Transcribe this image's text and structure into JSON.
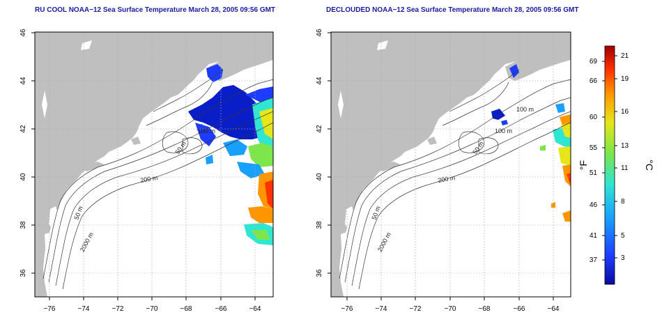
{
  "panels": [
    {
      "title": "RU COOL NOAA−12 Sea Surface Temperature March 28, 2005 09:56 GMT",
      "contour_labels": [
        "100 m",
        "50 m",
        "200 m",
        "50 m",
        "2000 m"
      ]
    },
    {
      "title": "DECLOUDED NOAA−12 Sea Surface Temperature March 28, 2005 09:56 GMT",
      "contour_labels": [
        "100 m",
        "100 m",
        "50 m",
        "200 m",
        "50 m",
        "2000 m"
      ]
    }
  ],
  "axes": {
    "x_ticks": [
      "−76",
      "−74",
      "−72",
      "−70",
      "−68",
      "−66",
      "−64"
    ],
    "y_ticks": [
      "46",
      "44",
      "42",
      "40",
      "38",
      "36"
    ]
  },
  "colorbar": {
    "fahrenheit_label": "°F",
    "celsius_label": "°C",
    "fahrenheit_ticks": [
      "69",
      "66",
      "60",
      "55",
      "51",
      "46",
      "41",
      "37"
    ],
    "celsius_ticks": [
      "21",
      "19",
      "16",
      "13",
      "11",
      "8",
      "5",
      "3"
    ],
    "colors": [
      "#0a0aa0",
      "#1e3cff",
      "#19a0ff",
      "#2ee6d2",
      "#7ce64a",
      "#e6e619",
      "#ff9600",
      "#ff3200",
      "#a00000"
    ]
  },
  "colors": {
    "land": "#bfbfbf",
    "ocean": "#ffffff",
    "title": "#1a1aa0",
    "grid": "#aaaaaa"
  }
}
